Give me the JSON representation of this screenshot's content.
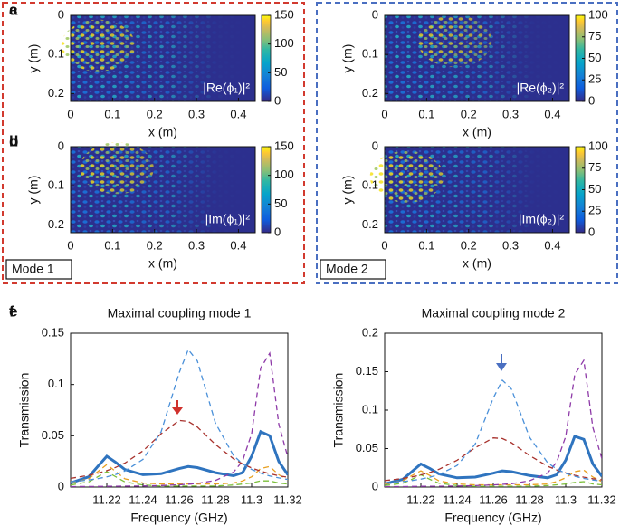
{
  "groups": [
    {
      "label": "Mode 1",
      "color": "#d23a2f"
    },
    {
      "label": "Mode 2",
      "color": "#4a6fc1"
    }
  ],
  "chart_data": [
    {
      "type": "heatmap",
      "panel": "a",
      "xlabel": "x (m)",
      "ylabel": "y (m)",
      "xlim": [
        0,
        0.44
      ],
      "ylim": [
        0,
        0.22
      ],
      "y_inverted": true,
      "xticks": [
        0,
        0.1,
        0.2,
        0.3,
        0.4
      ],
      "yticks": [
        0,
        0.1,
        0.2
      ],
      "colorbar": {
        "lim": [
          0,
          150
        ],
        "ticks": [
          0,
          50,
          100,
          150
        ]
      },
      "annotation": "|Re(ϕ₁)|²",
      "hot": [
        0.15,
        0.35
      ]
    },
    {
      "type": "heatmap",
      "panel": "b",
      "xlabel": "x (m)",
      "ylabel": "y (m)",
      "xlim": [
        0,
        0.44
      ],
      "ylim": [
        0,
        0.22
      ],
      "y_inverted": true,
      "xticks": [
        0,
        0.1,
        0.2,
        0.3,
        0.4
      ],
      "yticks": [
        0,
        0.1,
        0.2
      ],
      "colorbar": {
        "lim": [
          0,
          150
        ],
        "ticks": [
          0,
          50,
          100,
          150
        ]
      },
      "annotation": "|Im(ϕ₁)|²",
      "hot": [
        0.25,
        0.25
      ]
    },
    {
      "type": "heatmap",
      "panel": "c",
      "xlabel": "x (m)",
      "ylabel": "y (m)",
      "xlim": [
        0,
        0.44
      ],
      "ylim": [
        0,
        0.22
      ],
      "y_inverted": true,
      "xticks": [
        0,
        0.1,
        0.2,
        0.3,
        0.4
      ],
      "yticks": [
        0,
        0.1,
        0.2
      ],
      "colorbar": {
        "lim": [
          0,
          100
        ],
        "ticks": [
          0,
          25,
          50,
          75,
          100
        ]
      },
      "annotation": "|Re(ϕ₂)|²",
      "hot": [
        0.38,
        0.3
      ]
    },
    {
      "type": "heatmap",
      "panel": "d",
      "xlabel": "x (m)",
      "ylabel": "y (m)",
      "xlim": [
        0,
        0.44
      ],
      "ylim": [
        0,
        0.22
      ],
      "y_inverted": true,
      "xticks": [
        0,
        0.1,
        0.2,
        0.3,
        0.4
      ],
      "yticks": [
        0,
        0.1,
        0.2
      ],
      "colorbar": {
        "lim": [
          0,
          100
        ],
        "ticks": [
          0,
          25,
          50,
          75,
          100
        ]
      },
      "annotation": "|Im(ϕ₂)|²",
      "hot": [
        0.12,
        0.35
      ]
    },
    {
      "type": "line",
      "panel": "e",
      "title": "Maximal coupling mode 1",
      "xlabel": "Frequency (GHz)",
      "ylabel": "Transmission",
      "x": [
        11.2,
        11.21,
        11.215,
        11.22,
        11.225,
        11.23,
        11.24,
        11.25,
        11.26,
        11.265,
        11.27,
        11.28,
        11.29,
        11.295,
        11.3,
        11.305,
        11.31,
        11.315,
        11.32
      ],
      "xlim": [
        11.2,
        11.32
      ],
      "ylim": [
        0,
        0.15
      ],
      "xticks": [
        11.22,
        11.24,
        11.26,
        11.28,
        11.3,
        11.32
      ],
      "yticks": [
        0,
        0.05,
        0.1,
        0.15
      ],
      "series": [
        {
          "color": "#4a90d9",
          "dashed": true,
          "values": [
            0.005,
            0.0069,
            0.0082,
            0.01,
            0.0123,
            0.0156,
            0.027,
            0.0538,
            0.1115,
            0.134,
            0.123,
            0.0625,
            0.0306,
            0.0226,
            0.0172,
            0.0135,
            0.0108,
            0.0089,
            0.0074
          ]
        },
        {
          "color": "#a8322d",
          "dashed": true,
          "values": [
            0.0085,
            0.0114,
            0.0134,
            0.016,
            0.0192,
            0.0234,
            0.0353,
            0.052,
            0.0649,
            0.064,
            0.0585,
            0.0416,
            0.0275,
            0.0225,
            0.0186,
            0.0155,
            0.013,
            0.011,
            0.0095
          ]
        },
        {
          "color": "#8e3aa8",
          "dashed": true,
          "values": [
            0.0004,
            0.0005,
            0.0006,
            0.0007,
            0.0008,
            0.0009,
            0.0011,
            0.0015,
            0.0022,
            0.0028,
            0.0035,
            0.0064,
            0.0145,
            0.0255,
            0.052,
            0.116,
            0.1305,
            0.0614,
            0.029
          ]
        },
        {
          "color": "#e8a020",
          "dashed": true,
          "values": [
            0.004,
            0.008,
            0.015,
            0.022,
            0.015,
            0.008,
            0.004,
            0.003,
            0.003,
            0.003,
            0.003,
            0.003,
            0.004,
            0.006,
            0.01,
            0.018,
            0.02,
            0.012,
            0.007
          ]
        },
        {
          "color": "#7bbf3a",
          "dashed": true,
          "values": [
            0.002,
            0.005,
            0.01,
            0.015,
            0.01,
            0.005,
            0.002,
            0.001,
            0.001,
            0.001,
            0.001,
            0.001,
            0.002,
            0.003,
            0.004,
            0.006,
            0.006,
            0.004,
            0.003
          ]
        },
        {
          "color": "#2f74bf",
          "dashed": false,
          "values": [
            0.004,
            0.01,
            0.02,
            0.03,
            0.024,
            0.017,
            0.012,
            0.013,
            0.018,
            0.02,
            0.019,
            0.014,
            0.011,
            0.014,
            0.03,
            0.054,
            0.05,
            0.025,
            0.012
          ]
        }
      ]
    },
    {
      "type": "line",
      "panel": "f",
      "title": "Maximal coupling mode 2",
      "xlabel": "Frequency (GHz)",
      "ylabel": "Transmission",
      "x": [
        11.2,
        11.21,
        11.215,
        11.22,
        11.225,
        11.23,
        11.24,
        11.25,
        11.26,
        11.265,
        11.27,
        11.28,
        11.29,
        11.295,
        11.3,
        11.305,
        11.31,
        11.315,
        11.32
      ],
      "xlim": [
        11.2,
        11.32
      ],
      "ylim": [
        0,
        0.2
      ],
      "xticks": [
        11.22,
        11.24,
        11.26,
        11.28,
        11.3,
        11.32
      ],
      "yticks": [
        0,
        0.05,
        0.1,
        0.15,
        0.2
      ],
      "series": [
        {
          "color": "#4a90d9",
          "dashed": true,
          "values": [
            0.0052,
            0.0072,
            0.0085,
            0.0104,
            0.0128,
            0.0162,
            0.028,
            0.0558,
            0.1156,
            0.139,
            0.1275,
            0.0648,
            0.0317,
            0.0234,
            0.0178,
            0.014,
            0.0112,
            0.0092,
            0.0077
          ]
        },
        {
          "color": "#a8322d",
          "dashed": true,
          "values": [
            0.0084,
            0.0112,
            0.0132,
            0.0158,
            0.019,
            0.0231,
            0.0348,
            0.0512,
            0.0639,
            0.063,
            0.0576,
            0.041,
            0.0271,
            0.0222,
            0.0183,
            0.0153,
            0.0128,
            0.0108,
            0.0094
          ]
        },
        {
          "color": "#8e3aa8",
          "dashed": true,
          "values": [
            0.0005,
            0.0006,
            0.0008,
            0.0009,
            0.001,
            0.0011,
            0.0014,
            0.0019,
            0.0028,
            0.0035,
            0.0044,
            0.0081,
            0.0183,
            0.0322,
            0.0656,
            0.1464,
            0.1647,
            0.0775,
            0.0366
          ]
        },
        {
          "color": "#e8a020",
          "dashed": true,
          "values": [
            0.004,
            0.008,
            0.015,
            0.021,
            0.015,
            0.008,
            0.004,
            0.003,
            0.003,
            0.003,
            0.003,
            0.003,
            0.004,
            0.007,
            0.012,
            0.02,
            0.022,
            0.013,
            0.007
          ]
        },
        {
          "color": "#7bbf3a",
          "dashed": true,
          "values": [
            0.002,
            0.005,
            0.01,
            0.016,
            0.01,
            0.005,
            0.002,
            0.001,
            0.001,
            0.001,
            0.001,
            0.001,
            0.002,
            0.003,
            0.004,
            0.006,
            0.007,
            0.004,
            0.003
          ]
        },
        {
          "color": "#2f74bf",
          "dashed": false,
          "values": [
            0.004,
            0.01,
            0.02,
            0.03,
            0.024,
            0.017,
            0.012,
            0.013,
            0.018,
            0.021,
            0.02,
            0.015,
            0.012,
            0.016,
            0.035,
            0.066,
            0.062,
            0.03,
            0.014
          ]
        }
      ]
    }
  ]
}
